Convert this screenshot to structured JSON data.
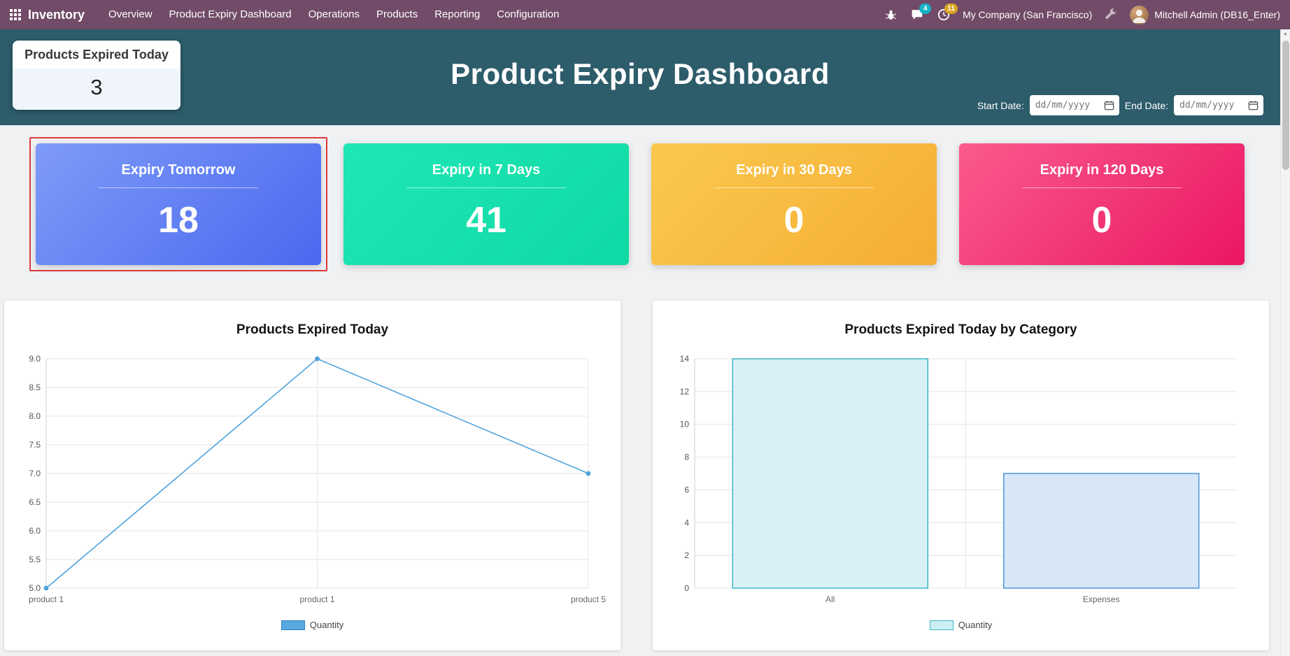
{
  "navbar": {
    "brand": "Inventory",
    "menu": [
      "Overview",
      "Product Expiry Dashboard",
      "Operations",
      "Products",
      "Reporting",
      "Configuration"
    ],
    "messages_badge": "4",
    "activities_badge": "11",
    "company": "My Company (San Francisco)",
    "user": "Mitchell Admin (DB16_Enter)",
    "colors": {
      "navbar_bg": "#714B67",
      "messages_badge_bg": "#12b3c7",
      "activities_badge_bg": "#d9a521"
    }
  },
  "hero": {
    "title": "Product Expiry Dashboard",
    "bg_color": "#2d5c6b",
    "expired_card": {
      "label": "Products Expired Today",
      "value": "3"
    },
    "filters": {
      "start_label": "Start Date:",
      "end_label": "End Date:",
      "placeholder": "dd/mm/yyyy"
    }
  },
  "selection_color": "#dd3b3b",
  "kpi_cards": [
    {
      "label": "Expiry Tomorrow",
      "value": "18",
      "gradient": [
        "#7e9bf8",
        "#4a68ef"
      ],
      "selected": true
    },
    {
      "label": "Expiry in 7 Days",
      "value": "41",
      "gradient": [
        "#1fe7b6",
        "#0fd9a4"
      ],
      "selected": false
    },
    {
      "label": "Expiry in 30 Days",
      "value": "0",
      "gradient": [
        "#fbc94f",
        "#f5ad33"
      ],
      "selected": false
    },
    {
      "label": "Expiry in 120 Days",
      "value": "0",
      "gradient": [
        "#fa5b8d",
        "#eb1663"
      ],
      "selected": false
    }
  ],
  "chart_data": [
    {
      "type": "line",
      "title": "Products Expired Today",
      "categories": [
        "product 1",
        "product 1",
        "product 5"
      ],
      "values": [
        5,
        9,
        7
      ],
      "ylim": [
        5.0,
        9.0
      ],
      "ytick_step": 0.5,
      "ytick_decimals": 1,
      "line_color": "#4da3dc",
      "legend": {
        "label": "Quantity",
        "fill": "#57a9e0",
        "stroke": "#2f80bd"
      }
    },
    {
      "type": "bar",
      "title": "Products Expired Today by Category",
      "categories": [
        "All",
        "Expenses"
      ],
      "values": [
        14,
        7
      ],
      "ylim": [
        0,
        14
      ],
      "ytick_step": 2,
      "ytick_decimals": 0,
      "bars": [
        {
          "fill": "#d8f1f4",
          "stroke": "#3db6c6"
        },
        {
          "fill": "#d7e7f8",
          "stroke": "#4e93d9"
        }
      ],
      "legend": {
        "label": "Quantity",
        "fill": "#cdeef2",
        "stroke": "#3db6c6"
      }
    }
  ]
}
